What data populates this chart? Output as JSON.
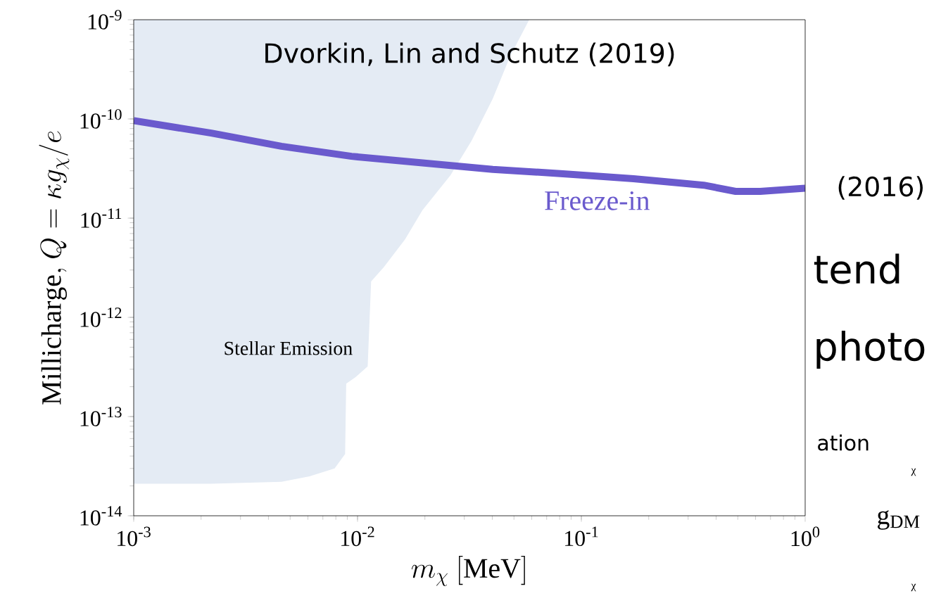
{
  "chart_data": {
    "type": "line",
    "title": "Dvorkin, Lin and Schutz (2019)",
    "xlabel": "m_\\chi\\ [\\mathrm{MeV}]",
    "ylabel": "\\mathrm{Millicharge,}\\ Q = \\kappa g_\\chi/e",
    "log": "xy",
    "xlim": [
      0.001,
      1
    ],
    "ylim": [
      1e-14,
      1e-09
    ],
    "xticks": [
      {
        "value": 0.001,
        "label": "10$^{-3}$"
      },
      {
        "value": 0.01,
        "label": "10$^{-2}$"
      },
      {
        "value": 0.1,
        "label": "10$^{-1}$"
      },
      {
        "value": 1,
        "label": "10$^{0}$"
      }
    ],
    "yticks": [
      {
        "value": 1e-14,
        "label": "10$^{-14}$"
      },
      {
        "value": 1e-13,
        "label": "10$^{-13}$"
      },
      {
        "value": 1e-12,
        "label": "10$^{-12}$"
      },
      {
        "value": 1e-11,
        "label": "10$^{-11}$"
      },
      {
        "value": 1e-10,
        "label": "10$^{-10}$"
      },
      {
        "value": 1e-09,
        "label": "10$^{-9}$"
      }
    ],
    "series": [
      {
        "type": "area",
        "color": "#e4ebf4",
        "x": [
          0.001,
          0.001,
          0.00222,
          0.00457,
          0.0061,
          0.0079,
          0.0088,
          0.0089,
          0.0098,
          0.0111,
          0.0115,
          0.0131,
          0.0163,
          0.0195,
          0.026,
          0.0323,
          0.0402,
          0.0481,
          0.0585
        ],
        "values": [
          1e-09,
          2.1e-14,
          2.1e-14,
          2.2e-14,
          2.5e-14,
          3e-14,
          4.2e-14,
          2.15e-13,
          2.5e-13,
          3.2e-13,
          2.3e-12,
          3.2e-12,
          6.1e-12,
          1.2e-11,
          2.7e-11,
          6e-11,
          1.6e-10,
          4.3e-10,
          1e-09
        ]
      },
      {
        "name": "Freeze-in",
        "color": "#6a5acd",
        "x": [
          0.001,
          0.00222,
          0.00457,
          0.0094,
          0.0195,
          0.0402,
          0.0828,
          0.171,
          0.352,
          0.489,
          0.63,
          1
        ],
        "values": [
          9.6e-11,
          7.2e-11,
          5.3e-11,
          4.2e-11,
          3.6e-11,
          3.1e-11,
          2.8e-11,
          2.5e-11,
          2.15e-11,
          1.86e-11,
          1.86e-11,
          2e-11
        ]
      }
    ],
    "annotations": [
      "Stellar Emission",
      "(2016)",
      "tend",
      "photo",
      "ation",
      "g$_{DM}$",
      "χ",
      "χ"
    ]
  }
}
